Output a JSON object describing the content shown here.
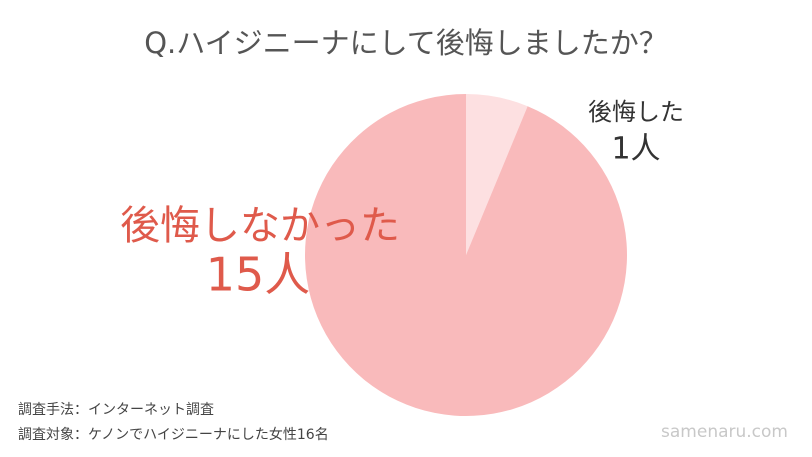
{
  "chart_data": {
    "type": "pie",
    "title": "Q.ハイジニーナにして後悔しましたか？",
    "categories": [
      "後悔した",
      "後悔しなかった"
    ],
    "values": [
      1,
      15
    ],
    "value_labels": [
      "1人",
      "15人"
    ],
    "colors": [
      "#fde0e1",
      "#f9babb"
    ],
    "label_colors": [
      "#333333",
      "#df5a4b"
    ],
    "notes": [
      "調査手法：インターネット調査",
      "調査対象：ケノンでハイジニーナにした女性16名"
    ],
    "watermark": "samenaru.com"
  }
}
